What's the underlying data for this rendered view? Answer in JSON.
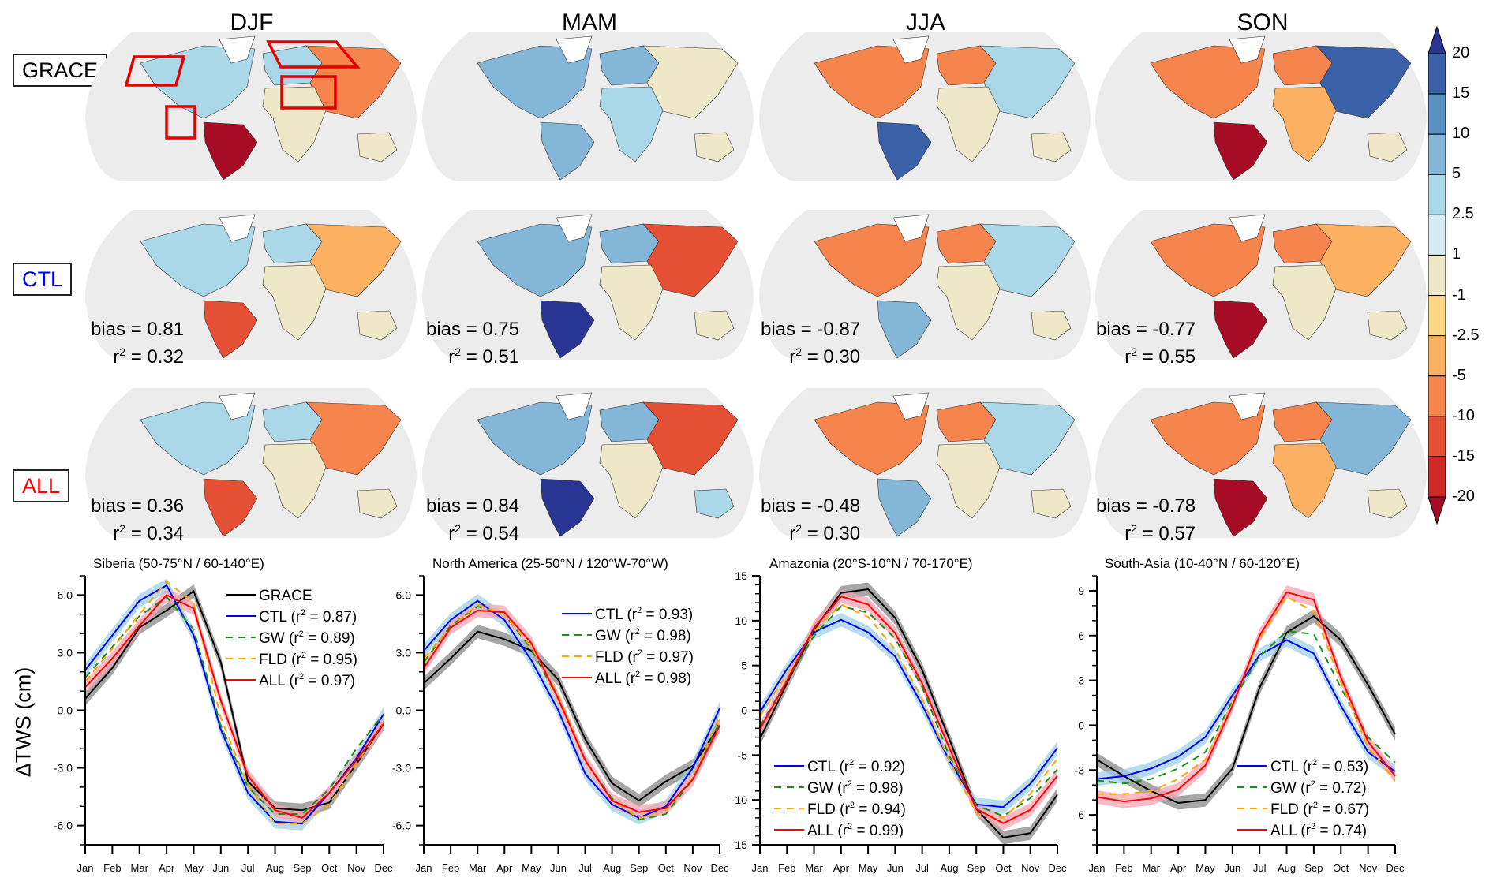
{
  "figure": {
    "seasons": [
      "DJF",
      "MAM",
      "JJA",
      "SON"
    ],
    "rows": [
      {
        "label": "GRACE",
        "color": "#000000"
      },
      {
        "label": "CTL",
        "color": "#0000ff"
      },
      {
        "label": "ALL",
        "color": "#ff0000"
      }
    ],
    "map_stats": {
      "CTL": [
        {
          "bias": "bias = 0.81",
          "r2_prefix": "r",
          "r2": " = 0.32"
        },
        {
          "bias": "bias = 0.75",
          "r2_prefix": "r",
          "r2": " = 0.51"
        },
        {
          "bias": "bias = -0.87",
          "r2_prefix": "r",
          "r2": " = 0.30"
        },
        {
          "bias": "bias = -0.77",
          "r2_prefix": "r",
          "r2": " = 0.55"
        }
      ],
      "ALL": [
        {
          "bias": "bias = 0.36",
          "r2_prefix": "r",
          "r2": " = 0.34"
        },
        {
          "bias": "bias = 0.84",
          "r2_prefix": "r",
          "r2": " = 0.54"
        },
        {
          "bias": "bias = -0.48",
          "r2_prefix": "r",
          "r2": " = 0.30"
        },
        {
          "bias": "bias = -0.78",
          "r2_prefix": "r",
          "r2": " = 0.57"
        }
      ]
    },
    "grace_boxes": [
      "North America",
      "Amazonia",
      "Siberia",
      "South Asia"
    ],
    "colorbar": {
      "labels": [
        "20",
        "15",
        "10",
        "5",
        "2.5",
        "1",
        "-1",
        "-2.5",
        "-5",
        "-10",
        "-15",
        "-20"
      ],
      "colors": [
        "#283593",
        "#3a60a8",
        "#5b8fc2",
        "#84b6d8",
        "#aad8e8",
        "#d4ecf2",
        "#efe8c8",
        "#fdd686",
        "#fbb062",
        "#f5844d",
        "#e55035",
        "#cf2a27",
        "#a70c26"
      ]
    },
    "ylabel": "ΔTWS (cm)"
  },
  "chart_data": [
    {
      "type": "line",
      "title": "Siberia (50-75°N / 60-140°E)",
      "xlabel": "",
      "ylabel": "ΔTWS (cm)",
      "categories": [
        "Jan",
        "Feb",
        "Mar",
        "Apr",
        "May",
        "Jun",
        "Jul",
        "Aug",
        "Sep",
        "Oct",
        "Nov",
        "Dec"
      ],
      "ylim": [
        -7,
        7
      ],
      "yticks": [
        -6,
        -3,
        0,
        3,
        6
      ],
      "ytick_labels": [
        "-6.0",
        "-3.0",
        "0.0",
        "3.0",
        "6.0"
      ],
      "yminor": 1,
      "legend_position": "top-right",
      "series": [
        {
          "name": "GRACE",
          "legend": "GRACE",
          "r2": "",
          "color": "#000000",
          "band": "#888888",
          "dash": false,
          "values": [
            0.6,
            2.2,
            4.3,
            5.2,
            6.2,
            2.5,
            -3.7,
            -5.1,
            -5.2,
            -4.8,
            -2.8,
            -0.7
          ]
        },
        {
          "name": "CTL",
          "legend": "CTL (r",
          "r2": " = 0.87)",
          "color": "#0000ff",
          "band": "#9fd0e6",
          "dash": false,
          "values": [
            2.1,
            3.9,
            5.7,
            6.5,
            3.9,
            -1.0,
            -4.3,
            -5.8,
            -5.9,
            -4.3,
            -2.5,
            -0.2
          ]
        },
        {
          "name": "GW",
          "legend": "GW (r",
          "r2": " = 0.89)",
          "color": "#1a8f1a",
          "band": null,
          "dash": true,
          "values": [
            1.7,
            3.3,
            4.9,
            5.9,
            4.2,
            -0.8,
            -4.0,
            -5.4,
            -5.4,
            -4.1,
            -2.0,
            -0.2
          ]
        },
        {
          "name": "FLD",
          "legend": "FLD (r",
          "r2": " = 0.95)",
          "color": "#ffa500",
          "band": null,
          "dash": true,
          "values": [
            1.5,
            3.2,
            5.0,
            6.7,
            5.6,
            -0.4,
            -3.9,
            -5.9,
            -5.9,
            -4.9,
            -2.8,
            -0.6
          ]
        },
        {
          "name": "ALL",
          "legend": "ALL (r",
          "r2": " = 0.97)",
          "color": "#ff0000",
          "band": "#f5a3b0",
          "dash": false,
          "values": [
            1.2,
            2.7,
            4.4,
            6.0,
            5.3,
            0.5,
            -3.4,
            -5.2,
            -5.6,
            -4.3,
            -2.6,
            -0.7
          ]
        }
      ]
    },
    {
      "type": "line",
      "title": "North America (25-50°N / 120°W-70°W)",
      "xlabel": "",
      "ylabel": "",
      "categories": [
        "Jan",
        "Feb",
        "Mar",
        "Apr",
        "May",
        "Jun",
        "Jul",
        "Aug",
        "Sep",
        "Oct",
        "Nov",
        "Dec"
      ],
      "ylim": [
        -7,
        7
      ],
      "yticks": [
        -6,
        -3,
        0,
        3,
        6
      ],
      "ytick_labels": [
        "-6.0",
        "-3.0",
        "0.0",
        "3.0",
        "6.0"
      ],
      "yminor": 1,
      "legend_position": "top-right",
      "series": [
        {
          "name": "GRACE",
          "legend": "",
          "r2": "",
          "color": "#000000",
          "band": "#888888",
          "dash": false,
          "values": [
            1.4,
            2.7,
            4.1,
            3.7,
            3.1,
            1.6,
            -1.5,
            -3.8,
            -4.7,
            -3.7,
            -2.9,
            -0.8
          ]
        },
        {
          "name": "CTL",
          "legend": "CTL (r",
          "r2": " = 0.93)",
          "color": "#0000ff",
          "band": "#9fd0e6",
          "dash": false,
          "values": [
            3.1,
            4.7,
            5.7,
            4.7,
            2.6,
            0.0,
            -3.3,
            -4.9,
            -5.6,
            -5.0,
            -3.0,
            0.1
          ]
        },
        {
          "name": "GW",
          "legend": "GW (r",
          "r2": " = 0.98)",
          "color": "#1a8f1a",
          "band": null,
          "dash": true,
          "values": [
            2.5,
            4.4,
            5.4,
            5.0,
            3.2,
            0.6,
            -2.6,
            -4.6,
            -5.7,
            -5.4,
            -3.6,
            -0.6
          ]
        },
        {
          "name": "FLD",
          "legend": "FLD (r",
          "r2": " = 0.97)",
          "color": "#ffa500",
          "band": null,
          "dash": true,
          "values": [
            2.7,
            4.3,
            5.5,
            5.0,
            3.3,
            0.8,
            -2.6,
            -4.7,
            -5.6,
            -5.2,
            -3.5,
            -0.3
          ]
        },
        {
          "name": "ALL",
          "legend": "ALL (r",
          "r2": " = 0.98)",
          "color": "#ff0000",
          "band": "#f5a3b0",
          "dash": false,
          "values": [
            2.2,
            4.3,
            5.2,
            5.1,
            3.5,
            0.6,
            -2.6,
            -4.7,
            -5.3,
            -5.1,
            -3.6,
            -0.8
          ]
        }
      ]
    },
    {
      "type": "line",
      "title": "Amazonia (20°S-10°N / 70-170°E)",
      "xlabel": "",
      "ylabel": "",
      "categories": [
        "Jan",
        "Feb",
        "Mar",
        "Apr",
        "May",
        "Jun",
        "Jul",
        "Aug",
        "Sep",
        "Oct",
        "Nov",
        "Dec"
      ],
      "ylim": [
        -15,
        15
      ],
      "yticks": [
        -15,
        -10,
        -5,
        0,
        5,
        10,
        15
      ],
      "ytick_labels": [
        "-15",
        "-10",
        "-5",
        "0",
        "5",
        "10",
        "15"
      ],
      "yminor": 1,
      "legend_position": "bottom-left",
      "series": [
        {
          "name": "GRACE",
          "legend": "",
          "r2": "",
          "color": "#000000",
          "band": "#888888",
          "dash": false,
          "values": [
            -3.2,
            3.0,
            9.0,
            13.1,
            13.5,
            10.3,
            4.5,
            -3.2,
            -11.0,
            -14.2,
            -13.7,
            -9.4
          ]
        },
        {
          "name": "CTL",
          "legend": "CTL (r",
          "r2": " = 0.92)",
          "color": "#0000ff",
          "band": "#9fd0e6",
          "dash": false,
          "values": [
            -0.2,
            4.6,
            8.7,
            10.1,
            8.7,
            6.0,
            0.6,
            -5.6,
            -10.5,
            -10.8,
            -8.2,
            -4.2
          ]
        },
        {
          "name": "GW",
          "legend": "GW (r",
          "r2": " = 0.98)",
          "color": "#1a8f1a",
          "band": null,
          "dash": true,
          "values": [
            -1.8,
            3.3,
            8.3,
            11.6,
            10.9,
            8.0,
            2.6,
            -5.1,
            -10.6,
            -11.8,
            -9.8,
            -6.6
          ]
        },
        {
          "name": "FLD",
          "legend": "FLD (r",
          "r2": " = 0.94)",
          "color": "#ffa500",
          "band": null,
          "dash": true,
          "values": [
            -0.6,
            4.0,
            8.8,
            11.8,
            10.4,
            6.8,
            1.3,
            -5.6,
            -11.5,
            -12.0,
            -9.3,
            -5.4
          ]
        },
        {
          "name": "ALL",
          "legend": "ALL (r",
          "r2": " = 0.99)",
          "color": "#ff0000",
          "band": "#f5a3b0",
          "dash": false,
          "values": [
            -2.1,
            3.3,
            9.2,
            12.7,
            11.8,
            8.6,
            3.0,
            -4.2,
            -11.0,
            -12.6,
            -11.1,
            -7.3
          ]
        }
      ]
    },
    {
      "type": "line",
      "title": "South-Asia (10-40°N / 60-120°E)",
      "xlabel": "",
      "ylabel": "",
      "categories": [
        "Jan",
        "Feb",
        "Mar",
        "Apr",
        "May",
        "Jun",
        "Jul",
        "Aug",
        "Sep",
        "Oct",
        "Nov",
        "Dec"
      ],
      "ylim": [
        -8,
        10
      ],
      "yticks": [
        -6,
        -3,
        0,
        3,
        6,
        9
      ],
      "ytick_labels": [
        "-6",
        "-3",
        "0",
        "3",
        "6",
        "9"
      ],
      "yminor": 1,
      "legend_position": "bottom-right",
      "series": [
        {
          "name": "GRACE",
          "legend": "",
          "r2": "",
          "color": "#000000",
          "band": "#888888",
          "dash": false,
          "values": [
            -2.3,
            -3.4,
            -4.4,
            -5.2,
            -5.0,
            -2.9,
            2.5,
            6.2,
            7.3,
            5.7,
            2.7,
            -0.6
          ]
        },
        {
          "name": "CTL",
          "legend": "CTL (r",
          "r2": " = 0.53)",
          "color": "#0000ff",
          "band": "#9fd0e6",
          "dash": false,
          "values": [
            -3.6,
            -3.4,
            -2.9,
            -2.1,
            -0.8,
            2.0,
            4.7,
            5.7,
            4.8,
            1.3,
            -1.8,
            -3.1
          ]
        },
        {
          "name": "GW",
          "legend": "GW (r",
          "r2": " = 0.72)",
          "color": "#1a8f1a",
          "band": null,
          "dash": true,
          "values": [
            -3.7,
            -3.9,
            -3.6,
            -2.9,
            -1.8,
            1.6,
            4.6,
            6.3,
            6.1,
            2.5,
            -0.8,
            -2.5
          ]
        },
        {
          "name": "FLD",
          "legend": "FLD (r",
          "r2": " = 0.67)",
          "color": "#ffa500",
          "band": null,
          "dash": true,
          "values": [
            -4.6,
            -4.6,
            -4.4,
            -3.6,
            -2.3,
            1.4,
            5.8,
            8.6,
            7.6,
            2.9,
            -1.5,
            -3.7
          ]
        },
        {
          "name": "ALL",
          "legend": "ALL (r",
          "r2": " = 0.74)",
          "color": "#ff0000",
          "band": "#f5a3b0",
          "dash": false,
          "values": [
            -4.8,
            -5.1,
            -4.9,
            -4.3,
            -2.7,
            1.3,
            6.0,
            8.9,
            8.4,
            3.2,
            -1.1,
            -3.4
          ]
        }
      ]
    }
  ]
}
